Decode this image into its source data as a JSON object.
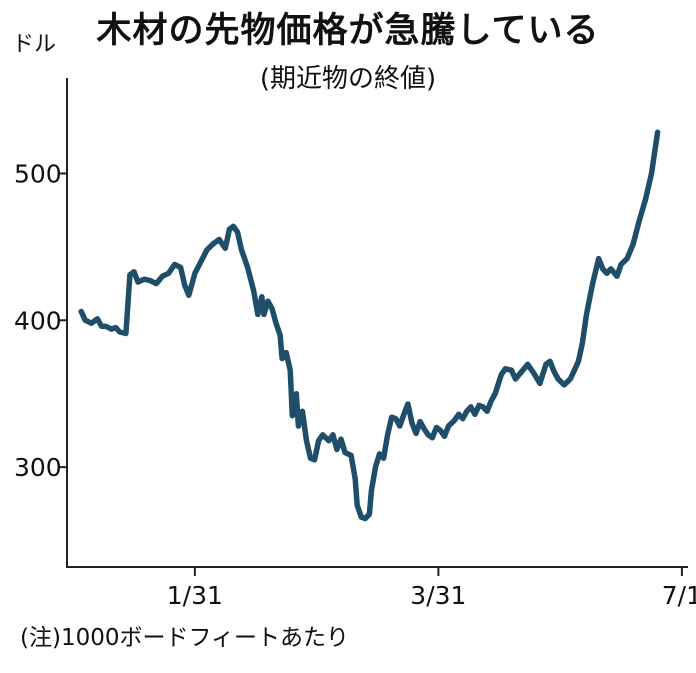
{
  "chart_data": {
    "type": "line",
    "title": "木材の先物価格が急騰している",
    "subtitle": "(期近物の終値)",
    "ylabel": "ドル",
    "note": "(注)1000ボードフィートあたり",
    "ylim": [
      232,
      565
    ],
    "xlim": [
      -0.3,
      30.3
    ],
    "y_ticks": [
      {
        "value": 300,
        "label": "300"
      },
      {
        "value": 400,
        "label": "400"
      },
      {
        "value": 500,
        "label": "500"
      }
    ],
    "x_ticks": [
      {
        "value": 6,
        "label": "1/31"
      },
      {
        "value": 18,
        "label": "3/31"
      },
      {
        "value": 30,
        "label": "7/1"
      }
    ],
    "grid": false,
    "series": [
      {
        "color": "#1f4e6b",
        "points": [
          [
            0.4,
            406
          ],
          [
            0.6,
            400
          ],
          [
            0.9,
            398
          ],
          [
            1.2,
            401
          ],
          [
            1.4,
            396
          ],
          [
            1.6,
            396
          ],
          [
            1.9,
            394
          ],
          [
            2.1,
            395
          ],
          [
            2.3,
            392
          ],
          [
            2.6,
            391
          ],
          [
            2.8,
            431
          ],
          [
            3.0,
            433
          ],
          [
            3.2,
            426
          ],
          [
            3.5,
            428
          ],
          [
            3.8,
            427
          ],
          [
            4.1,
            425
          ],
          [
            4.4,
            430
          ],
          [
            4.7,
            432
          ],
          [
            5.0,
            438
          ],
          [
            5.3,
            436
          ],
          [
            5.5,
            424
          ],
          [
            5.7,
            417
          ],
          [
            6.0,
            432
          ],
          [
            6.3,
            440
          ],
          [
            6.6,
            448
          ],
          [
            6.9,
            452
          ],
          [
            7.2,
            455
          ],
          [
            7.5,
            449
          ],
          [
            7.7,
            462
          ],
          [
            7.9,
            464
          ],
          [
            8.1,
            460
          ],
          [
            8.3,
            448
          ],
          [
            8.6,
            436
          ],
          [
            8.9,
            420
          ],
          [
            9.1,
            404
          ],
          [
            9.3,
            416
          ],
          [
            9.4,
            404
          ],
          [
            9.6,
            413
          ],
          [
            9.8,
            408
          ],
          [
            10.0,
            398
          ],
          [
            10.2,
            390
          ],
          [
            10.3,
            374
          ],
          [
            10.5,
            378
          ],
          [
            10.7,
            366
          ],
          [
            10.8,
            335
          ],
          [
            11.0,
            350
          ],
          [
            11.1,
            328
          ],
          [
            11.3,
            338
          ],
          [
            11.5,
            318
          ],
          [
            11.7,
            306
          ],
          [
            11.9,
            305
          ],
          [
            12.1,
            318
          ],
          [
            12.3,
            322
          ],
          [
            12.6,
            318
          ],
          [
            12.8,
            322
          ],
          [
            13.0,
            312
          ],
          [
            13.2,
            319
          ],
          [
            13.4,
            310
          ],
          [
            13.7,
            308
          ],
          [
            13.9,
            292
          ],
          [
            14.0,
            274
          ],
          [
            14.2,
            266
          ],
          [
            14.4,
            265
          ],
          [
            14.6,
            268
          ],
          [
            14.7,
            284
          ],
          [
            14.9,
            300
          ],
          [
            15.1,
            309
          ],
          [
            15.3,
            306
          ],
          [
            15.5,
            322
          ],
          [
            15.7,
            334
          ],
          [
            15.9,
            333
          ],
          [
            16.1,
            328
          ],
          [
            16.3,
            336
          ],
          [
            16.5,
            343
          ],
          [
            16.7,
            330
          ],
          [
            16.9,
            323
          ],
          [
            17.1,
            331
          ],
          [
            17.3,
            326
          ],
          [
            17.5,
            322
          ],
          [
            17.7,
            320
          ],
          [
            17.9,
            327
          ],
          [
            18.1,
            325
          ],
          [
            18.3,
            321
          ],
          [
            18.5,
            328
          ],
          [
            18.8,
            332
          ],
          [
            19.0,
            336
          ],
          [
            19.2,
            333
          ],
          [
            19.4,
            338
          ],
          [
            19.6,
            341
          ],
          [
            19.8,
            336
          ],
          [
            20.0,
            342
          ],
          [
            20.2,
            341
          ],
          [
            20.4,
            338
          ],
          [
            20.6,
            345
          ],
          [
            20.8,
            350
          ],
          [
            21.1,
            363
          ],
          [
            21.3,
            367
          ],
          [
            21.6,
            366
          ],
          [
            21.8,
            360
          ],
          [
            22.1,
            365
          ],
          [
            22.4,
            370
          ],
          [
            22.7,
            364
          ],
          [
            23.0,
            357
          ],
          [
            23.3,
            370
          ],
          [
            23.5,
            372
          ],
          [
            23.7,
            365
          ],
          [
            23.9,
            360
          ],
          [
            24.2,
            356
          ],
          [
            24.5,
            360
          ],
          [
            24.7,
            366
          ],
          [
            24.9,
            372
          ],
          [
            25.1,
            385
          ],
          [
            25.3,
            404
          ],
          [
            25.6,
            425
          ],
          [
            25.9,
            442
          ],
          [
            26.1,
            435
          ],
          [
            26.3,
            432
          ],
          [
            26.5,
            435
          ],
          [
            26.8,
            430
          ],
          [
            27.0,
            438
          ],
          [
            27.3,
            442
          ],
          [
            27.6,
            452
          ],
          [
            27.9,
            468
          ],
          [
            28.2,
            482
          ],
          [
            28.5,
            500
          ],
          [
            28.8,
            528
          ]
        ]
      }
    ]
  }
}
